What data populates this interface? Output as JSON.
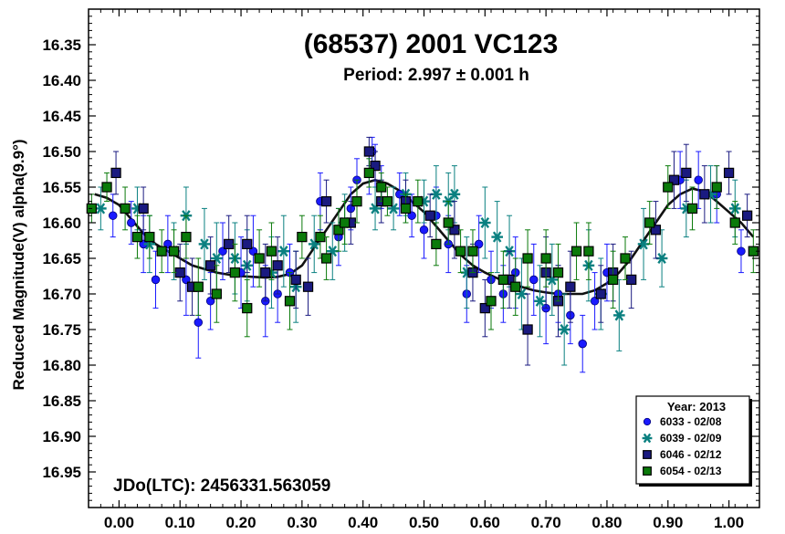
{
  "chart_data": {
    "type": "scatter",
    "title": "(68537) 2001 VC123",
    "subtitle": "Period: 2.997 ± 0.001 h",
    "ylabel": "Reduced Magnitude(V) alpha(9.9°)",
    "xlabel": "",
    "annotation": "JDo(LTC): 2456331.563059",
    "xlim": [
      -0.05,
      1.05
    ],
    "ylim": [
      16.3,
      17.0
    ],
    "y_inverted": true,
    "grid": false,
    "legend_position": "bottom-right",
    "legend_title": "Year: 2013",
    "x_ticks": [
      0.0,
      0.1,
      0.2,
      0.3,
      0.4,
      0.5,
      0.6,
      0.7,
      0.8,
      0.9,
      1.0
    ],
    "x_tick_labels": [
      "0.00",
      "0.10",
      "0.20",
      "0.30",
      "0.40",
      "0.50",
      "0.60",
      "0.70",
      "0.80",
      "0.90",
      "1.00"
    ],
    "y_ticks": [
      16.35,
      16.4,
      16.45,
      16.5,
      16.55,
      16.6,
      16.65,
      16.7,
      16.75,
      16.8,
      16.85,
      16.9,
      16.95
    ],
    "y_tick_labels": [
      "16.35",
      "16.40",
      "16.45",
      "16.50",
      "16.55",
      "16.60",
      "16.65",
      "16.70",
      "16.75",
      "16.80",
      "16.85",
      "16.90",
      "16.95"
    ],
    "fit_curve": {
      "x": [
        -0.04,
        -0.02,
        0.0,
        0.02,
        0.04,
        0.06,
        0.08,
        0.1,
        0.12,
        0.14,
        0.16,
        0.18,
        0.2,
        0.22,
        0.24,
        0.26,
        0.28,
        0.3,
        0.32,
        0.34,
        0.36,
        0.38,
        0.4,
        0.42,
        0.44,
        0.46,
        0.48,
        0.5,
        0.52,
        0.54,
        0.56,
        0.58,
        0.6,
        0.62,
        0.64,
        0.66,
        0.68,
        0.7,
        0.72,
        0.74,
        0.76,
        0.78,
        0.8,
        0.82,
        0.84,
        0.86,
        0.88,
        0.9,
        0.92,
        0.94,
        0.96,
        0.98,
        1.0,
        1.02,
        1.04
      ],
      "y": [
        16.56,
        16.565,
        16.575,
        16.595,
        16.615,
        16.63,
        16.64,
        16.65,
        16.66,
        16.665,
        16.67,
        16.673,
        16.675,
        16.676,
        16.677,
        16.676,
        16.672,
        16.66,
        16.635,
        16.61,
        16.585,
        16.56,
        16.545,
        16.54,
        16.545,
        16.555,
        16.57,
        16.585,
        16.605,
        16.625,
        16.645,
        16.66,
        16.67,
        16.678,
        16.685,
        16.69,
        16.695,
        16.698,
        16.7,
        16.7,
        16.7,
        16.695,
        16.685,
        16.67,
        16.65,
        16.625,
        16.6,
        16.575,
        16.56,
        16.552,
        16.556,
        16.57,
        16.585,
        16.6,
        16.62
      ]
    },
    "series": [
      {
        "name": "6033 - 02/08",
        "marker": "circle",
        "color": "#1a1aff",
        "x": [
          -0.01,
          0.02,
          0.04,
          0.06,
          0.08,
          0.11,
          0.13,
          0.15,
          0.17,
          0.2,
          0.22,
          0.24,
          0.26,
          0.28,
          0.33,
          0.36,
          0.38,
          0.39,
          0.41,
          0.415,
          0.42,
          0.43,
          0.46,
          0.48,
          0.5,
          0.52,
          0.54,
          0.57,
          0.59,
          0.61,
          0.63,
          0.65,
          0.68,
          0.7,
          0.72,
          0.74,
          0.76,
          0.78,
          0.8,
          0.92,
          0.95,
          0.98,
          1.02
        ],
        "y": [
          16.59,
          16.6,
          16.63,
          16.68,
          16.63,
          16.68,
          16.74,
          16.71,
          16.64,
          16.67,
          16.64,
          16.71,
          16.7,
          16.67,
          16.57,
          16.62,
          16.58,
          16.54,
          16.53,
          16.5,
          16.52,
          16.55,
          16.56,
          16.59,
          16.61,
          16.59,
          16.63,
          16.7,
          16.63,
          16.68,
          16.7,
          16.67,
          16.68,
          16.72,
          16.7,
          16.73,
          16.77,
          16.71,
          16.67,
          16.54,
          16.54,
          16.56,
          16.64
        ],
        "err": [
          0.03,
          0.03,
          0.04,
          0.04,
          0.04,
          0.05,
          0.05,
          0.04,
          0.04,
          0.05,
          0.05,
          0.05,
          0.04,
          0.04,
          0.04,
          0.04,
          0.03,
          0.03,
          0.03,
          0.02,
          0.03,
          0.03,
          0.03,
          0.03,
          0.04,
          0.04,
          0.04,
          0.04,
          0.04,
          0.04,
          0.04,
          0.05,
          0.05,
          0.05,
          0.04,
          0.04,
          0.04,
          0.04,
          0.04,
          0.04,
          0.04,
          0.04,
          0.03
        ]
      },
      {
        "name": "6039 - 02/09",
        "marker": "asterisk",
        "color": "#0a8080",
        "x": [
          -0.03,
          0.03,
          0.05,
          0.09,
          0.11,
          0.14,
          0.16,
          0.19,
          0.21,
          0.25,
          0.27,
          0.29,
          0.32,
          0.35,
          0.37,
          0.42,
          0.45,
          0.47,
          0.5,
          0.52,
          0.54,
          0.55,
          0.57,
          0.6,
          0.62,
          0.64,
          0.66,
          0.69,
          0.71,
          0.73,
          0.77,
          0.79,
          0.82,
          0.86,
          0.89,
          0.93,
          0.97,
          1.01
        ],
        "y": [
          16.58,
          16.58,
          16.63,
          16.64,
          16.59,
          16.63,
          16.65,
          16.65,
          16.66,
          16.67,
          16.64,
          16.69,
          16.63,
          16.64,
          16.6,
          16.58,
          16.58,
          16.56,
          16.57,
          16.56,
          16.57,
          16.56,
          16.67,
          16.6,
          16.62,
          16.64,
          16.7,
          16.71,
          16.68,
          16.75,
          16.66,
          16.7,
          16.73,
          16.63,
          16.65,
          16.58,
          16.56,
          16.58
        ],
        "err": [
          0.03,
          0.03,
          0.04,
          0.04,
          0.04,
          0.05,
          0.05,
          0.05,
          0.05,
          0.05,
          0.05,
          0.05,
          0.04,
          0.04,
          0.04,
          0.03,
          0.03,
          0.03,
          0.03,
          0.04,
          0.04,
          0.04,
          0.05,
          0.05,
          0.05,
          0.05,
          0.05,
          0.05,
          0.05,
          0.05,
          0.05,
          0.05,
          0.05,
          0.05,
          0.04,
          0.04,
          0.04,
          0.04
        ]
      },
      {
        "name": "6046 - 02/12",
        "marker": "square",
        "color": "#1a1a80",
        "x": [
          -0.005,
          0.04,
          0.1,
          0.12,
          0.15,
          0.18,
          0.21,
          0.24,
          0.26,
          0.29,
          0.31,
          0.34,
          0.38,
          0.41,
          0.42,
          0.43,
          0.47,
          0.51,
          0.55,
          0.58,
          0.6,
          0.64,
          0.67,
          0.7,
          0.72,
          0.74,
          0.79,
          0.81,
          0.84,
          0.88,
          0.91,
          0.93,
          0.96,
          1.0,
          1.03
        ],
        "y": [
          16.53,
          16.58,
          16.67,
          16.69,
          16.66,
          16.63,
          16.63,
          16.67,
          16.66,
          16.68,
          16.69,
          16.57,
          16.6,
          16.5,
          16.52,
          16.57,
          16.57,
          16.59,
          16.61,
          16.67,
          16.72,
          16.68,
          16.75,
          16.67,
          16.71,
          16.69,
          16.7,
          16.67,
          16.68,
          16.61,
          16.54,
          16.53,
          16.56,
          16.53,
          16.59
        ],
        "err": [
          0.03,
          0.03,
          0.04,
          0.04,
          0.04,
          0.04,
          0.04,
          0.04,
          0.04,
          0.04,
          0.04,
          0.03,
          0.03,
          0.02,
          0.02,
          0.03,
          0.03,
          0.03,
          0.04,
          0.04,
          0.04,
          0.04,
          0.05,
          0.05,
          0.05,
          0.05,
          0.04,
          0.04,
          0.04,
          0.04,
          0.04,
          0.04,
          0.04,
          0.03,
          0.03
        ]
      },
      {
        "name": "6054 - 02/13",
        "marker": "square",
        "color": "#0a7a0a",
        "x": [
          -0.045,
          -0.02,
          0.01,
          0.03,
          0.05,
          0.07,
          0.09,
          0.11,
          0.13,
          0.16,
          0.19,
          0.21,
          0.23,
          0.25,
          0.28,
          0.3,
          0.33,
          0.34,
          0.36,
          0.37,
          0.39,
          0.41,
          0.43,
          0.44,
          0.47,
          0.49,
          0.52,
          0.54,
          0.56,
          0.58,
          0.61,
          0.63,
          0.65,
          0.67,
          0.7,
          0.72,
          0.75,
          0.77,
          0.81,
          0.83,
          0.87,
          0.9,
          0.94,
          0.98,
          1.01,
          1.04
        ],
        "y": [
          16.58,
          16.55,
          16.58,
          16.62,
          16.62,
          16.64,
          16.64,
          16.62,
          16.69,
          16.7,
          16.67,
          16.72,
          16.65,
          16.64,
          16.71,
          16.62,
          16.62,
          16.65,
          16.61,
          16.6,
          16.57,
          16.53,
          16.55,
          16.57,
          16.58,
          16.57,
          16.63,
          16.6,
          16.64,
          16.64,
          16.71,
          16.68,
          16.69,
          16.65,
          16.65,
          16.67,
          16.64,
          16.64,
          16.68,
          16.65,
          16.6,
          16.55,
          16.58,
          16.55,
          16.6,
          16.64
        ],
        "err": [
          0.02,
          0.02,
          0.03,
          0.03,
          0.03,
          0.03,
          0.03,
          0.03,
          0.04,
          0.04,
          0.04,
          0.04,
          0.04,
          0.04,
          0.04,
          0.03,
          0.03,
          0.03,
          0.03,
          0.03,
          0.03,
          0.02,
          0.02,
          0.02,
          0.02,
          0.03,
          0.03,
          0.03,
          0.03,
          0.03,
          0.04,
          0.04,
          0.04,
          0.04,
          0.04,
          0.04,
          0.04,
          0.04,
          0.04,
          0.03,
          0.03,
          0.03,
          0.03,
          0.03,
          0.03,
          0.03
        ]
      }
    ]
  }
}
